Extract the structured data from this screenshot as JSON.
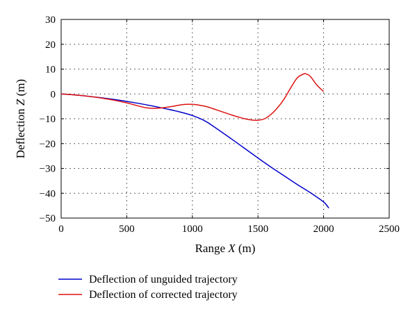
{
  "chart_data": {
    "type": "line",
    "xlabel": "Range X (m)",
    "xlabel_main": "Range ",
    "xlabel_var": "X",
    "xlabel_unit": " (m)",
    "ylabel": "Deflection Z (m)",
    "ylabel_main": "Deflection ",
    "ylabel_var": "Z",
    "ylabel_unit": " (m)",
    "xlim": [
      0,
      2500
    ],
    "ylim": [
      -50,
      30
    ],
    "xticks": [
      0,
      500,
      1000,
      1500,
      2000,
      2500
    ],
    "yticks": [
      30,
      20,
      10,
      0,
      -10,
      -20,
      -30,
      -40,
      -50
    ],
    "grid": true,
    "legend_position": "bottom-left, below plot",
    "series": [
      {
        "name": "Deflection of unguided trajectory",
        "color": "#0000cc",
        "x": [
          0,
          100,
          200,
          300,
          400,
          500,
          600,
          700,
          800,
          900,
          1000,
          1100,
          1200,
          1300,
          1400,
          1500,
          1600,
          1700,
          1800,
          1900,
          2000,
          2040
        ],
        "y": [
          0,
          -0.4,
          -0.9,
          -1.5,
          -2.2,
          -3.0,
          -3.9,
          -4.9,
          -6.0,
          -7.2,
          -8.7,
          -11.0,
          -14.5,
          -18.2,
          -22.0,
          -25.8,
          -29.5,
          -33.0,
          -36.5,
          -39.8,
          -43.5,
          -46.0
        ]
      },
      {
        "name": "Deflection of corrected trajectory",
        "color": "#dd1111",
        "x": [
          0,
          100,
          200,
          300,
          400,
          500,
          550,
          600,
          650,
          700,
          750,
          800,
          850,
          900,
          950,
          1000,
          1050,
          1100,
          1150,
          1200,
          1250,
          1300,
          1350,
          1400,
          1450,
          1500,
          1550,
          1600,
          1650,
          1700,
          1750,
          1800,
          1850,
          1870,
          1900,
          1950,
          2000
        ],
        "y": [
          0,
          -0.4,
          -0.9,
          -1.6,
          -2.5,
          -3.6,
          -4.3,
          -5.0,
          -5.6,
          -5.8,
          -5.7,
          -5.4,
          -5.0,
          -4.5,
          -4.2,
          -4.2,
          -4.5,
          -5.0,
          -5.8,
          -6.7,
          -7.6,
          -8.5,
          -9.3,
          -10.0,
          -10.5,
          -10.6,
          -10.0,
          -8.2,
          -5.5,
          -2.0,
          2.5,
          6.5,
          8.1,
          8.0,
          7.0,
          3.5,
          1.0
        ]
      }
    ]
  }
}
